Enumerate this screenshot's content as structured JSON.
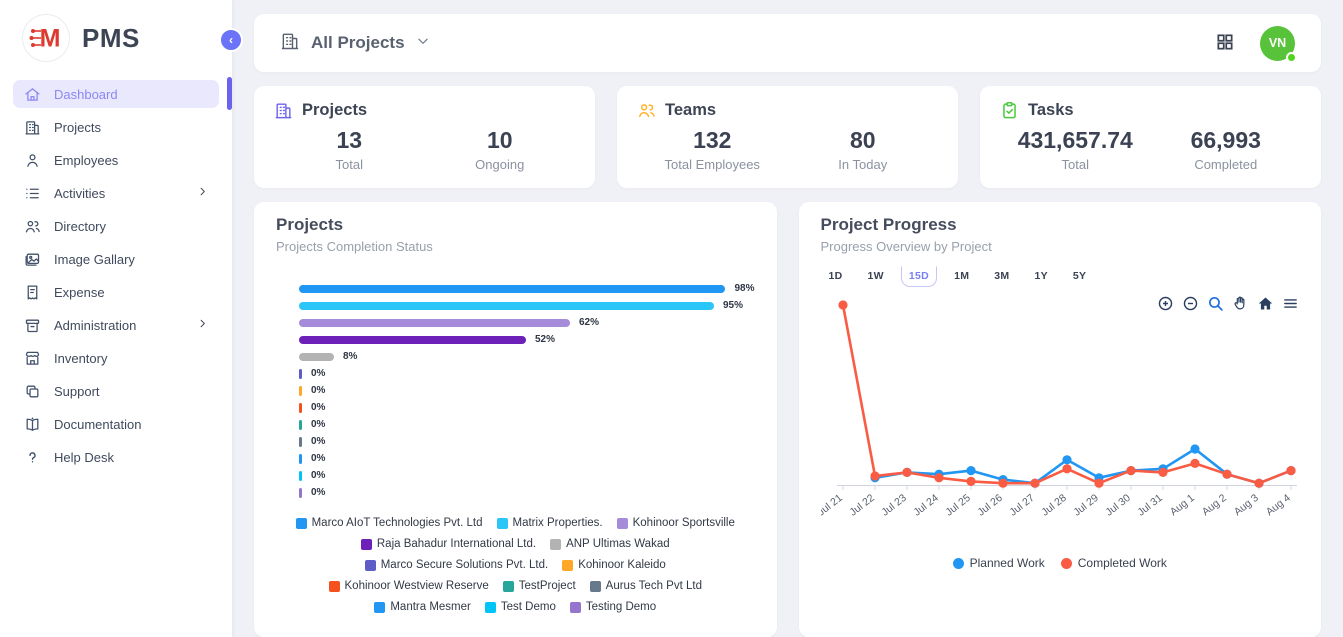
{
  "app": {
    "name": "PMS"
  },
  "topbar": {
    "project_selector": "All Projects"
  },
  "user": {
    "initials": "VN",
    "status": "online",
    "avatar_color": "#58c23b"
  },
  "sidebar": {
    "items": [
      {
        "label": "Dashboard",
        "icon": "home-icon",
        "active": true,
        "has_children": false
      },
      {
        "label": "Projects",
        "icon": "building-icon",
        "active": false,
        "has_children": false
      },
      {
        "label": "Employees",
        "icon": "person-icon",
        "active": false,
        "has_children": false
      },
      {
        "label": "Activities",
        "icon": "list-icon",
        "active": false,
        "has_children": true
      },
      {
        "label": "Directory",
        "icon": "people-icon",
        "active": false,
        "has_children": false
      },
      {
        "label": "Image Gallary",
        "icon": "image-icon",
        "active": false,
        "has_children": false
      },
      {
        "label": "Expense",
        "icon": "receipt-icon",
        "active": false,
        "has_children": false
      },
      {
        "label": "Administration",
        "icon": "archive-icon",
        "active": false,
        "has_children": true
      },
      {
        "label": "Inventory",
        "icon": "store-icon",
        "active": false,
        "has_children": false
      },
      {
        "label": "Support",
        "icon": "copy-icon",
        "active": false,
        "has_children": false
      },
      {
        "label": "Documentation",
        "icon": "book-icon",
        "active": false,
        "has_children": false
      },
      {
        "label": "Help Desk",
        "icon": "help-icon",
        "active": false,
        "has_children": false
      }
    ]
  },
  "stats": [
    {
      "title": "Projects",
      "icon": "building-icon",
      "accent": "#6f63f2",
      "metrics": [
        {
          "value": "13",
          "label": "Total"
        },
        {
          "value": "10",
          "label": "Ongoing"
        }
      ]
    },
    {
      "title": "Teams",
      "icon": "people-icon",
      "accent": "#ffb020",
      "metrics": [
        {
          "value": "132",
          "label": "Total Employees"
        },
        {
          "value": "80",
          "label": "In Today"
        }
      ]
    },
    {
      "title": "Tasks",
      "icon": "clipboard-check-icon",
      "accent": "#49c93c",
      "metrics": [
        {
          "value": "431,657.74",
          "label": "Total"
        },
        {
          "value": "66,993",
          "label": "Completed"
        }
      ]
    }
  ],
  "chart_data": [
    {
      "id": "projects_completion",
      "type": "bar",
      "orientation": "horizontal",
      "title": "Projects",
      "subtitle": "Projects Completion Status",
      "unit": "%",
      "xlim": [
        0,
        100
      ],
      "legend_position": "bottom",
      "categories": [
        "Marco AIoT Technologies Pvt. Ltd",
        "Matrix Properties.",
        "Kohinoor Sportsville",
        "Raja Bahadur International Ltd.",
        "ANP Ultimas Wakad",
        "Marco Secure Solutions Pvt. Ltd.",
        "Kohinoor Kaleido",
        "Kohinoor Westview Reserve",
        "TestProject",
        "Aurus Tech Pvt Ltd",
        "Mantra Mesmer",
        "Test Demo",
        "Testing Demo"
      ],
      "values": [
        98,
        95,
        62,
        52,
        8,
        0,
        0,
        0,
        0,
        0,
        0,
        0,
        0
      ],
      "colors": [
        "#2196f3",
        "#29c6f7",
        "#a78bdb",
        "#6e21b8",
        "#b3b3b3",
        "#5e5cc6",
        "#ffa726",
        "#f4511e",
        "#26a69a",
        "#66788a",
        "#2196f3",
        "#00c3f7",
        "#9575cd"
      ]
    },
    {
      "id": "project_progress",
      "type": "line",
      "title": "Project Progress",
      "subtitle": "Progress Overview by Project",
      "legend_position": "bottom",
      "ylim": [
        0,
        105
      ],
      "ranges": [
        "1D",
        "1W",
        "15D",
        "1M",
        "3M",
        "1Y",
        "5Y"
      ],
      "active_range": "15D",
      "toolbar": [
        "zoom-in-icon",
        "zoom-out-icon",
        "zoom-icon",
        "pan-icon",
        "home-icon",
        "menu-icon"
      ],
      "x": [
        "Jul 21",
        "Jul 22",
        "Jul 23",
        "Jul 24",
        "Jul 25",
        "Jul 26",
        "Jul 27",
        "Jul 28",
        "Jul 29",
        "Jul 30",
        "Jul 31",
        "Aug 1",
        "Aug 2",
        "Aug 3",
        "Aug 4"
      ],
      "series": [
        {
          "name": "Planned Work",
          "color": "#2196f3",
          "values": [
            null,
            4,
            7,
            6,
            8,
            3,
            1,
            14,
            4,
            8,
            9,
            20,
            6,
            1,
            8
          ]
        },
        {
          "name": "Completed Work",
          "color": "#fa5b43",
          "values": [
            100,
            5,
            7,
            4,
            2,
            1,
            1,
            9,
            1,
            8,
            7,
            12,
            6,
            1,
            8
          ]
        }
      ]
    }
  ]
}
